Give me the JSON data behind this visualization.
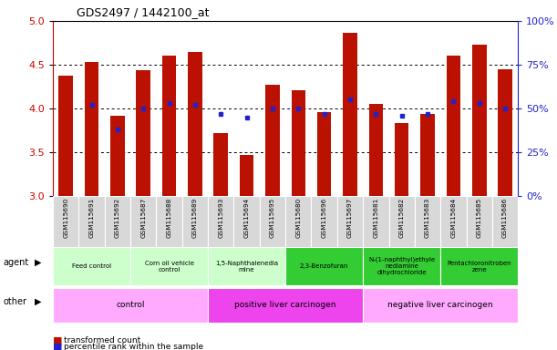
{
  "title": "GDS2497 / 1442100_at",
  "samples": [
    "GSM115690",
    "GSM115691",
    "GSM115692",
    "GSM115687",
    "GSM115688",
    "GSM115689",
    "GSM115693",
    "GSM115694",
    "GSM115695",
    "GSM115680",
    "GSM115696",
    "GSM115697",
    "GSM115681",
    "GSM115682",
    "GSM115683",
    "GSM115684",
    "GSM115685",
    "GSM115686"
  ],
  "red_values": [
    4.38,
    4.53,
    3.92,
    4.44,
    4.6,
    4.65,
    3.72,
    3.47,
    4.27,
    4.21,
    3.96,
    4.87,
    4.05,
    3.83,
    3.94,
    4.6,
    4.73,
    4.45
  ],
  "blue_pcts": [
    null,
    52,
    38,
    50,
    53,
    52,
    47,
    45,
    50,
    50,
    47,
    55,
    47,
    46,
    47,
    54,
    53,
    50
  ],
  "ylim_left": [
    3.0,
    5.0
  ],
  "ylim_right": [
    0,
    100
  ],
  "yticks_left": [
    3.0,
    3.5,
    4.0,
    4.5,
    5.0
  ],
  "yticks_right": [
    0,
    25,
    50,
    75,
    100
  ],
  "agent_groups": [
    {
      "label": "Feed control",
      "start": 0,
      "end": 3,
      "color": "#ccffcc"
    },
    {
      "label": "Corn oil vehicle\ncontrol",
      "start": 3,
      "end": 6,
      "color": "#ccffcc"
    },
    {
      "label": "1,5-Naphthalenedia\nmine",
      "start": 6,
      "end": 9,
      "color": "#ccffcc"
    },
    {
      "label": "2,3-Benzofuran",
      "start": 9,
      "end": 12,
      "color": "#33cc33"
    },
    {
      "label": "N-(1-naphthyl)ethyle\nnediamine\ndihydrochloride",
      "start": 12,
      "end": 15,
      "color": "#33cc33"
    },
    {
      "label": "Pentachloronitroben\nzene",
      "start": 15,
      "end": 18,
      "color": "#33cc33"
    }
  ],
  "other_groups": [
    {
      "label": "control",
      "start": 0,
      "end": 6,
      "color": "#ffaaff"
    },
    {
      "label": "positive liver carcinogen",
      "start": 6,
      "end": 12,
      "color": "#ee44ee"
    },
    {
      "label": "negative liver carcinogen",
      "start": 12,
      "end": 18,
      "color": "#ffaaff"
    }
  ],
  "bar_color": "#bb1100",
  "blue_color": "#2222cc",
  "left_axis_color": "#cc0000",
  "right_axis_color": "#2222cc",
  "sample_bg": "#d8d8d8",
  "grid_dotted_color": "#333333"
}
